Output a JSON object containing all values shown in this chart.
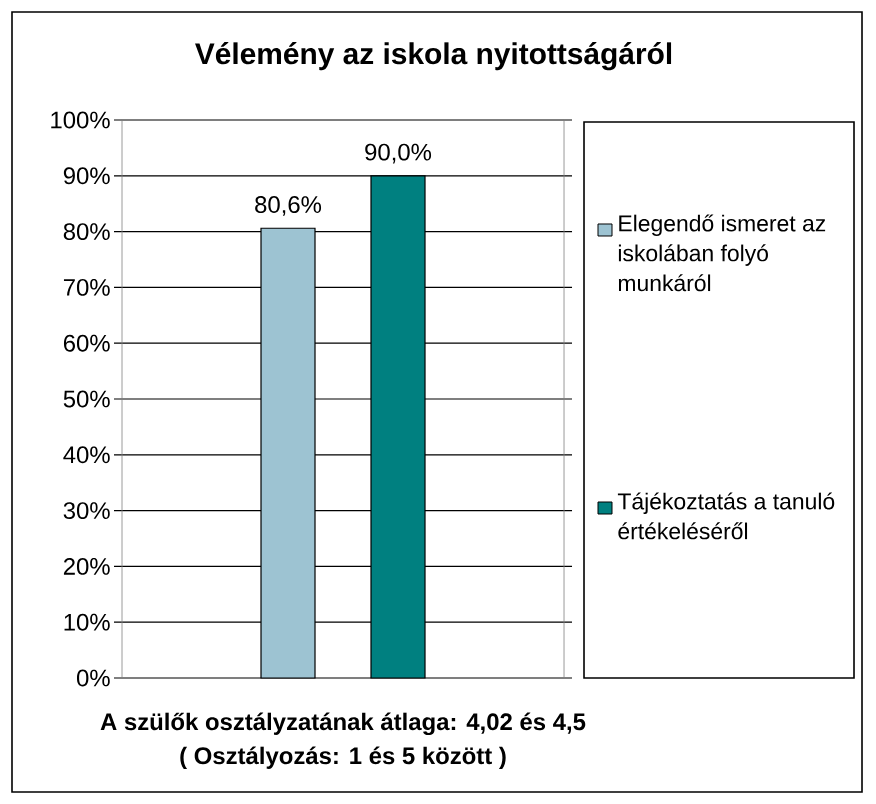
{
  "chart_data": {
    "type": "bar",
    "title": "Vélemény az iskola nyitottságáról",
    "categories": [
      null
    ],
    "series": [
      {
        "name": "Elegendő ismeret az iskolában folyó munkáról",
        "color": "#9dc3d2",
        "values": [
          80.6
        ],
        "value_labels": [
          "80,6%"
        ]
      },
      {
        "name": "Tájékoztatás a tanuló értékeléséről",
        "color": "#008080",
        "values": [
          90.0
        ],
        "value_labels": [
          "90,0%"
        ]
      }
    ],
    "ylim": [
      0,
      100
    ],
    "yticks": [
      {
        "value": 0,
        "label": "0%"
      },
      {
        "value": 10,
        "label": "10%"
      },
      {
        "value": 20,
        "label": "20%"
      },
      {
        "value": 30,
        "label": "30%"
      },
      {
        "value": 40,
        "label": "40%"
      },
      {
        "value": 50,
        "label": "50%"
      },
      {
        "value": 60,
        "label": "60%"
      },
      {
        "value": 70,
        "label": "70%"
      },
      {
        "value": 80,
        "label": "80%"
      },
      {
        "value": 90,
        "label": "90%"
      },
      {
        "value": 100,
        "label": "100%"
      }
    ],
    "grid": "y",
    "legend": "right",
    "annotations": [
      "A szülők osztályzatának átlaga: 4,02 és 4,5",
      "( Osztályozás: 1 és 5 között )"
    ]
  }
}
